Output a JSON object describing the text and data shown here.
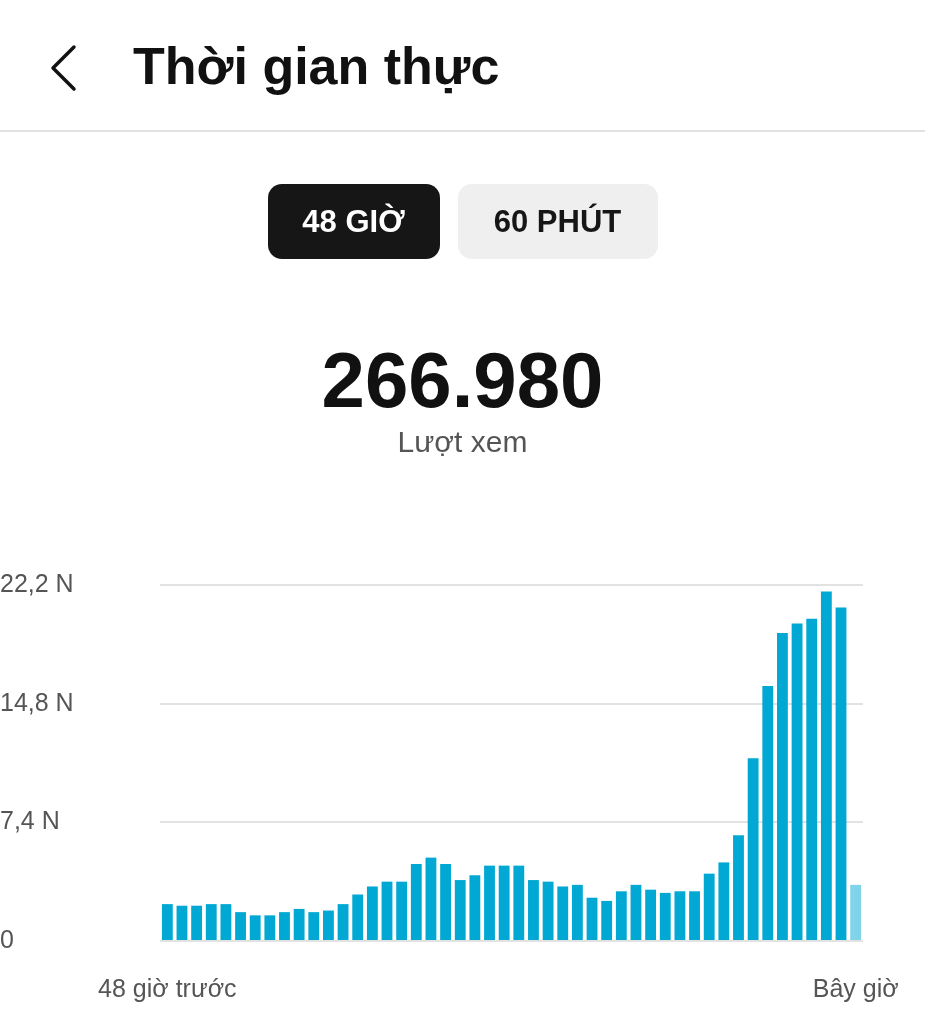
{
  "chart_data": {
    "type": "bar",
    "title": "Thời gian thực",
    "annotations": [
      "48 GIỜ",
      "60 PHÚT",
      "266.980",
      "Lượt xem"
    ],
    "categories": [
      "48 giờ trước",
      null,
      null,
      null,
      null,
      null,
      null,
      null,
      null,
      null,
      null,
      null,
      null,
      null,
      null,
      null,
      null,
      null,
      null,
      null,
      null,
      null,
      null,
      null,
      null,
      null,
      null,
      null,
      null,
      null,
      null,
      null,
      null,
      null,
      null,
      null,
      null,
      null,
      null,
      null,
      null,
      null,
      null,
      null,
      null,
      null,
      null,
      "Bây giờ"
    ],
    "values": [
      2.3,
      2.2,
      2.2,
      2.3,
      2.3,
      1.8,
      1.6,
      1.6,
      1.8,
      2.0,
      1.8,
      1.9,
      2.3,
      2.9,
      3.4,
      3.7,
      3.7,
      4.8,
      5.2,
      4.8,
      3.8,
      4.1,
      4.7,
      4.7,
      4.7,
      3.8,
      3.7,
      3.4,
      3.5,
      2.7,
      2.5,
      3.1,
      3.5,
      3.2,
      3.0,
      3.1,
      3.1,
      4.2,
      4.9,
      6.6,
      11.4,
      15.9,
      19.2,
      19.8,
      20.1,
      21.8,
      20.8,
      3.5
    ],
    "colors": [
      "#00a8d3",
      "#00a8d3",
      "#00a8d3",
      "#00a8d3",
      "#00a8d3",
      "#00a8d3",
      "#00a8d3",
      "#00a8d3",
      "#00a8d3",
      "#00a8d3",
      "#00a8d3",
      "#00a8d3",
      "#00a8d3",
      "#00a8d3",
      "#00a8d3",
      "#00a8d3",
      "#00a8d3",
      "#00a8d3",
      "#00a8d3",
      "#00a8d3",
      "#00a8d3",
      "#00a8d3",
      "#00a8d3",
      "#00a8d3",
      "#00a8d3",
      "#00a8d3",
      "#00a8d3",
      "#00a8d3",
      "#00a8d3",
      "#00a8d3",
      "#00a8d3",
      "#00a8d3",
      "#00a8d3",
      "#00a8d3",
      "#00a8d3",
      "#00a8d3",
      "#00a8d3",
      "#00a8d3",
      "#00a8d3",
      "#00a8d3",
      "#00a8d3",
      "#00a8d3",
      "#00a8d3",
      "#00a8d3",
      "#00a8d3",
      "#00a8d3",
      "#00a8d3",
      "#80d4ea"
    ],
    "ylim": [
      0,
      22.2
    ],
    "yticks": [
      {
        "value": 0,
        "label": "0"
      },
      {
        "value": 7.4,
        "label": "7,4 N"
      },
      {
        "value": 14.8,
        "label": "14,8 N"
      },
      {
        "value": 22.2,
        "label": "22,2 N"
      }
    ],
    "grid": "y"
  }
}
